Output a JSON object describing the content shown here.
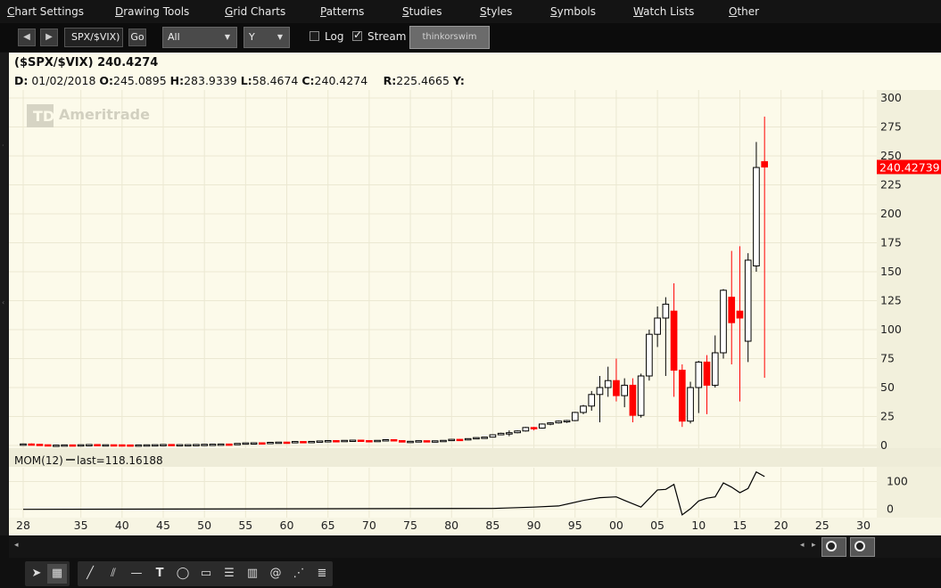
{
  "menu": [
    "Chart Settings",
    "Drawing Tools",
    "Grid Charts",
    "Patterns",
    "Studies",
    "Styles",
    "Symbols",
    "Watch Lists",
    "Other"
  ],
  "toolbar": {
    "symbol": "SPX/$VIX)",
    "go_label": "Go",
    "timeframe": "All",
    "aggregation": "Y",
    "log_label": "Log",
    "log_checked": false,
    "stream_label": "Stream",
    "stream_checked": true,
    "logo_text": "thinkorswim"
  },
  "header": {
    "title": "($SPX/$VIX)  240.4274",
    "d_label": "D:",
    "d_value": " 01/02/2018 ",
    "o_label": "O:",
    "o_value": "245.0895 ",
    "h_label": "H:",
    "h_value": "283.9339 ",
    "l_label": "L:",
    "l_value": "58.4674 ",
    "c_label": "C:",
    "c_value": "240.4274",
    "r_label": "R:",
    "r_value": "225.4665 ",
    "y_label": "Y:"
  },
  "watermark": "Ameritrade",
  "price_badge": "240.42739",
  "colors": {
    "background": "#fcfaea",
    "up": "#ffffff",
    "down": "#ff0000",
    "badge": "#ff0000",
    "line": "#000000"
  },
  "indicator_label": "MOM(12)",
  "indicator_last": "last=118.16188",
  "chart_data": {
    "type": "candlestick",
    "title": "($SPX/$VIX)",
    "price_axis": {
      "ticks": [
        0,
        25,
        50,
        75,
        100,
        125,
        150,
        175,
        200,
        225,
        250,
        275,
        300
      ],
      "tick_labels": [
        "0",
        "25",
        "50",
        "75",
        "100",
        "125",
        "150",
        "175",
        "200",
        "225",
        "250",
        "275",
        "300"
      ],
      "ylim": [
        0,
        300
      ]
    },
    "x_axis": {
      "ticks": [
        1928,
        1935,
        1940,
        1945,
        1950,
        1955,
        1960,
        1965,
        1970,
        1975,
        1980,
        1985,
        1990,
        1995,
        2000,
        2005,
        2010,
        2015,
        2020,
        2025,
        2030
      ],
      "tick_labels": [
        "28",
        "35",
        "40",
        "45",
        "50",
        "55",
        "60",
        "65",
        "70",
        "75",
        "80",
        "85",
        "90",
        "95",
        "00",
        "05",
        "10",
        "15",
        "20",
        "25",
        "30"
      ]
    },
    "candles": [
      {
        "year": 1928,
        "o": 1.2,
        "h": 1.6,
        "l": 0.9,
        "c": 1.3
      },
      {
        "year": 1929,
        "o": 1.3,
        "h": 1.8,
        "l": 0.8,
        "c": 1.0
      },
      {
        "year": 1930,
        "o": 1.0,
        "h": 1.2,
        "l": 0.5,
        "c": 0.6
      },
      {
        "year": 1931,
        "o": 0.6,
        "h": 0.8,
        "l": 0.2,
        "c": 0.3
      },
      {
        "year": 1932,
        "o": 0.3,
        "h": 0.5,
        "l": 0.1,
        "c": 0.3
      },
      {
        "year": 1933,
        "o": 0.3,
        "h": 0.7,
        "l": 0.2,
        "c": 0.5
      },
      {
        "year": 1934,
        "o": 0.5,
        "h": 0.6,
        "l": 0.3,
        "c": 0.4
      },
      {
        "year": 1935,
        "o": 0.4,
        "h": 0.7,
        "l": 0.3,
        "c": 0.6
      },
      {
        "year": 1936,
        "o": 0.6,
        "h": 0.9,
        "l": 0.5,
        "c": 0.8
      },
      {
        "year": 1937,
        "o": 0.8,
        "h": 0.9,
        "l": 0.4,
        "c": 0.5
      },
      {
        "year": 1938,
        "o": 0.5,
        "h": 0.7,
        "l": 0.4,
        "c": 0.6
      },
      {
        "year": 1939,
        "o": 0.6,
        "h": 0.7,
        "l": 0.5,
        "c": 0.55
      },
      {
        "year": 1940,
        "o": 0.55,
        "h": 0.6,
        "l": 0.4,
        "c": 0.45
      },
      {
        "year": 1941,
        "o": 0.45,
        "h": 0.5,
        "l": 0.35,
        "c": 0.4
      },
      {
        "year": 1942,
        "o": 0.4,
        "h": 0.5,
        "l": 0.35,
        "c": 0.45
      },
      {
        "year": 1943,
        "o": 0.45,
        "h": 0.6,
        "l": 0.4,
        "c": 0.55
      },
      {
        "year": 1944,
        "o": 0.55,
        "h": 0.7,
        "l": 0.5,
        "c": 0.65
      },
      {
        "year": 1945,
        "o": 0.65,
        "h": 0.9,
        "l": 0.6,
        "c": 0.85
      },
      {
        "year": 1946,
        "o": 0.85,
        "h": 0.95,
        "l": 0.6,
        "c": 0.7
      },
      {
        "year": 1947,
        "o": 0.7,
        "h": 0.8,
        "l": 0.6,
        "c": 0.7
      },
      {
        "year": 1948,
        "o": 0.7,
        "h": 0.85,
        "l": 0.6,
        "c": 0.7
      },
      {
        "year": 1949,
        "o": 0.7,
        "h": 0.9,
        "l": 0.6,
        "c": 0.85
      },
      {
        "year": 1950,
        "o": 0.85,
        "h": 1.1,
        "l": 0.8,
        "c": 1.0
      },
      {
        "year": 1951,
        "o": 1.0,
        "h": 1.2,
        "l": 0.95,
        "c": 1.1
      },
      {
        "year": 1952,
        "o": 1.1,
        "h": 1.3,
        "l": 1.0,
        "c": 1.25
      },
      {
        "year": 1953,
        "o": 1.25,
        "h": 1.3,
        "l": 1.1,
        "c": 1.2
      },
      {
        "year": 1954,
        "o": 1.2,
        "h": 1.8,
        "l": 1.15,
        "c": 1.75
      },
      {
        "year": 1955,
        "o": 1.75,
        "h": 2.3,
        "l": 1.7,
        "c": 2.2
      },
      {
        "year": 1956,
        "o": 2.2,
        "h": 2.5,
        "l": 2.1,
        "c": 2.3
      },
      {
        "year": 1957,
        "o": 2.3,
        "h": 2.4,
        "l": 1.9,
        "c": 2.0
      },
      {
        "year": 1958,
        "o": 2.0,
        "h": 2.8,
        "l": 1.95,
        "c": 2.7
      },
      {
        "year": 1959,
        "o": 2.7,
        "h": 3.0,
        "l": 2.6,
        "c": 2.9
      },
      {
        "year": 1960,
        "o": 2.9,
        "h": 3.0,
        "l": 2.6,
        "c": 2.8
      },
      {
        "year": 1961,
        "o": 2.8,
        "h": 3.5,
        "l": 2.75,
        "c": 3.4
      },
      {
        "year": 1962,
        "o": 3.4,
        "h": 3.5,
        "l": 2.6,
        "c": 3.0
      },
      {
        "year": 1963,
        "o": 3.0,
        "h": 3.6,
        "l": 2.9,
        "c": 3.5
      },
      {
        "year": 1964,
        "o": 3.5,
        "h": 4.0,
        "l": 3.4,
        "c": 3.9
      },
      {
        "year": 1965,
        "o": 3.9,
        "h": 4.3,
        "l": 3.7,
        "c": 4.2
      },
      {
        "year": 1966,
        "o": 4.2,
        "h": 4.4,
        "l": 3.5,
        "c": 3.7
      },
      {
        "year": 1967,
        "o": 3.7,
        "h": 4.5,
        "l": 3.6,
        "c": 4.4
      },
      {
        "year": 1968,
        "o": 4.4,
        "h": 4.8,
        "l": 4.0,
        "c": 4.6
      },
      {
        "year": 1969,
        "o": 4.6,
        "h": 4.7,
        "l": 4.0,
        "c": 4.2
      },
      {
        "year": 1970,
        "o": 4.2,
        "h": 4.4,
        "l": 3.3,
        "c": 3.9
      },
      {
        "year": 1971,
        "o": 3.9,
        "h": 4.6,
        "l": 3.8,
        "c": 4.4
      },
      {
        "year": 1972,
        "o": 4.4,
        "h": 5.2,
        "l": 4.3,
        "c": 5.0
      },
      {
        "year": 1973,
        "o": 5.0,
        "h": 5.1,
        "l": 4.0,
        "c": 4.2
      },
      {
        "year": 1974,
        "o": 4.2,
        "h": 4.3,
        "l": 2.7,
        "c": 2.9
      },
      {
        "year": 1975,
        "o": 2.9,
        "h": 3.8,
        "l": 2.8,
        "c": 3.6
      },
      {
        "year": 1976,
        "o": 3.6,
        "h": 4.3,
        "l": 3.5,
        "c": 4.1
      },
      {
        "year": 1977,
        "o": 4.1,
        "h": 4.2,
        "l": 3.6,
        "c": 3.8
      },
      {
        "year": 1978,
        "o": 3.8,
        "h": 4.1,
        "l": 3.5,
        "c": 4.0
      },
      {
        "year": 1979,
        "o": 4.0,
        "h": 4.5,
        "l": 3.9,
        "c": 4.4
      },
      {
        "year": 1980,
        "o": 4.4,
        "h": 5.5,
        "l": 4.2,
        "c": 5.3
      },
      {
        "year": 1981,
        "o": 5.3,
        "h": 5.5,
        "l": 4.6,
        "c": 4.9
      },
      {
        "year": 1982,
        "o": 4.9,
        "h": 6.1,
        "l": 4.5,
        "c": 5.9
      },
      {
        "year": 1983,
        "o": 5.9,
        "h": 7.0,
        "l": 5.8,
        "c": 6.8
      },
      {
        "year": 1984,
        "o": 6.8,
        "h": 7.3,
        "l": 6.2,
        "c": 7.2
      },
      {
        "year": 1985,
        "o": 7.2,
        "h": 9.5,
        "l": 7.0,
        "c": 9.2
      },
      {
        "year": 1986,
        "o": 9.2,
        "h": 11.0,
        "l": 8.8,
        "c": 10.5
      },
      {
        "year": 1987,
        "o": 10.5,
        "h": 13.0,
        "l": 8.0,
        "c": 11.0
      },
      {
        "year": 1988,
        "o": 11.0,
        "h": 13.0,
        "l": 10.5,
        "c": 12.5
      },
      {
        "year": 1989,
        "o": 12.5,
        "h": 16.0,
        "l": 12.0,
        "c": 15.5
      },
      {
        "year": 1990,
        "o": 15.5,
        "h": 16.0,
        "l": 13.0,
        "c": 15.0
      },
      {
        "year": 1991,
        "o": 15.0,
        "h": 19.0,
        "l": 14.5,
        "c": 18.5
      },
      {
        "year": 1992,
        "o": 18.5,
        "h": 20.0,
        "l": 17.5,
        "c": 19.5
      },
      {
        "year": 1993,
        "o": 19.5,
        "h": 21.5,
        "l": 19.0,
        "c": 21.0
      },
      {
        "year": 1994,
        "o": 21.0,
        "h": 22.0,
        "l": 19.5,
        "c": 21.5
      },
      {
        "year": 1995,
        "o": 21.5,
        "h": 29.0,
        "l": 21.0,
        "c": 28.5
      },
      {
        "year": 1996,
        "o": 28.5,
        "h": 35.0,
        "l": 27.0,
        "c": 34.0
      },
      {
        "year": 1997,
        "o": 34.0,
        "h": 47.0,
        "l": 30.0,
        "c": 44.0
      },
      {
        "year": 1998,
        "o": 44.0,
        "h": 60.0,
        "l": 20.0,
        "c": 50.0
      },
      {
        "year": 1999,
        "o": 50.0,
        "h": 68.0,
        "l": 42.0,
        "c": 56.0
      },
      {
        "year": 2000,
        "o": 56.0,
        "h": 75.0,
        "l": 38.0,
        "c": 43.0
      },
      {
        "year": 2001,
        "o": 43.0,
        "h": 58.0,
        "l": 33.0,
        "c": 52.0
      },
      {
        "year": 2002,
        "o": 52.0,
        "h": 58.0,
        "l": 20.0,
        "c": 26.0
      },
      {
        "year": 2003,
        "o": 26.0,
        "h": 62.0,
        "l": 24.0,
        "c": 60.0
      },
      {
        "year": 2004,
        "o": 60.0,
        "h": 100.0,
        "l": 56.0,
        "c": 96.0
      },
      {
        "year": 2005,
        "o": 96.0,
        "h": 120.0,
        "l": 85.0,
        "c": 110.0
      },
      {
        "year": 2006,
        "o": 110.0,
        "h": 128.0,
        "l": 60.0,
        "c": 122.0
      },
      {
        "year": 2007,
        "o": 116.0,
        "h": 140.0,
        "l": 42.0,
        "c": 65.0
      },
      {
        "year": 2008,
        "o": 65.0,
        "h": 70.0,
        "l": 16.0,
        "c": 21.0
      },
      {
        "year": 2009,
        "o": 21.0,
        "h": 55.0,
        "l": 19.0,
        "c": 50.0
      },
      {
        "year": 2010,
        "o": 50.0,
        "h": 73.0,
        "l": 28.0,
        "c": 72.0
      },
      {
        "year": 2011,
        "o": 72.0,
        "h": 78.0,
        "l": 27.0,
        "c": 52.0
      },
      {
        "year": 2012,
        "o": 52.0,
        "h": 95.0,
        "l": 50.0,
        "c": 80.0
      },
      {
        "year": 2013,
        "o": 80.0,
        "h": 135.0,
        "l": 75.0,
        "c": 134.0
      },
      {
        "year": 2014,
        "o": 128.0,
        "h": 168.0,
        "l": 70.0,
        "c": 106.0
      },
      {
        "year": 2015,
        "o": 116.0,
        "h": 172.0,
        "l": 38.0,
        "c": 110.0
      },
      {
        "year": 2016,
        "o": 90.0,
        "h": 166.0,
        "l": 72.0,
        "c": 160.0
      },
      {
        "year": 2017,
        "o": 155.0,
        "h": 262.0,
        "l": 150.0,
        "c": 240.0
      },
      {
        "year": 2018,
        "o": 245.0895,
        "h": 283.9339,
        "l": 58.4674,
        "c": 240.4274
      }
    ],
    "indicator": {
      "name": "MOM(12)",
      "last": 118.16188,
      "ticks": [
        0,
        100
      ],
      "tick_labels": [
        "0",
        "100"
      ],
      "ylim": [
        -30,
        150
      ],
      "points": [
        {
          "year": 1928,
          "v": 0
        },
        {
          "year": 1985,
          "v": 3
        },
        {
          "year": 1990,
          "v": 8
        },
        {
          "year": 1993,
          "v": 12
        },
        {
          "year": 1996,
          "v": 32
        },
        {
          "year": 1998,
          "v": 42
        },
        {
          "year": 2000,
          "v": 45
        },
        {
          "year": 2001,
          "v": 32
        },
        {
          "year": 2003,
          "v": 8
        },
        {
          "year": 2005,
          "v": 70
        },
        {
          "year": 2006,
          "v": 72
        },
        {
          "year": 2007,
          "v": 90
        },
        {
          "year": 2008,
          "v": -20
        },
        {
          "year": 2009,
          "v": 2
        },
        {
          "year": 2010,
          "v": 30
        },
        {
          "year": 2011,
          "v": 40
        },
        {
          "year": 2012,
          "v": 45
        },
        {
          "year": 2013,
          "v": 95
        },
        {
          "year": 2014,
          "v": 80
        },
        {
          "year": 2015,
          "v": 60
        },
        {
          "year": 2016,
          "v": 75
        },
        {
          "year": 2017,
          "v": 135
        },
        {
          "year": 2018,
          "v": 118.16188
        }
      ]
    }
  }
}
